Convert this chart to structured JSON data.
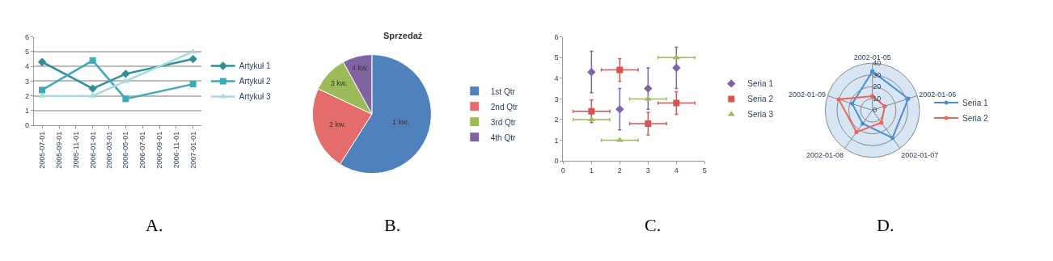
{
  "chart_data": [
    {
      "type": "line",
      "annotations": [
        "A."
      ],
      "x": [
        "2005-07-01",
        "2006-01-01",
        "2006-05-01",
        "2007-01-01"
      ],
      "series": [
        {
          "name": "Artykuł 1",
          "color": "#2e8f96",
          "marker": "diamond",
          "values": [
            4.3,
            2.5,
            3.5,
            4.5
          ]
        },
        {
          "name": "Artykuł 2",
          "color": "#3aabb8",
          "marker": "square",
          "values": [
            2.4,
            4.4,
            1.8,
            2.8
          ]
        },
        {
          "name": "Artykuł 3",
          "color": "#a6dce0",
          "marker": "triangle",
          "values": [
            2.0,
            2.0,
            3.0,
            5.0
          ]
        }
      ],
      "xlim": [
        "2005-06-01",
        "2007-02-01"
      ],
      "xticks": [
        "2005-07-01",
        "2005-09-01",
        "2005-11-01",
        "2006-01-01",
        "2006-03-01",
        "2006-05-01",
        "2006-07-01",
        "2006-09-01",
        "2006-11-01",
        "2007-01-01"
      ],
      "ylim": [
        0,
        6
      ],
      "yticks": [
        0,
        1,
        2,
        3,
        4,
        5,
        6
      ],
      "grid": "y",
      "legend": "right"
    },
    {
      "type": "pie",
      "title": "Sprzedaż",
      "annotations": [
        "B.",
        {
          "text": "1 kw.",
          "x": "1st Qtr"
        },
        {
          "text": "2 kw.",
          "x": "2nd Qtr"
        },
        {
          "text": "3 kw.",
          "x": "3rd Qtr"
        },
        {
          "text": "4 kw.",
          "x": "4th Qtr"
        }
      ],
      "categories": [
        "1st Qtr",
        "2nd Qtr",
        "3rd Qtr",
        "4th Qtr"
      ],
      "values": [
        59,
        23,
        10,
        8
      ],
      "colors": [
        "#4f81bd",
        "#e46c6a",
        "#9bbb59",
        "#8064a2"
      ],
      "legend": "right"
    },
    {
      "type": "scatter",
      "annotations": [
        "C."
      ],
      "x": [
        1,
        2,
        3,
        4
      ],
      "series": [
        {
          "name": "Seria 1",
          "color": "#8064a2",
          "marker": "diamond",
          "values": [
            4.3,
            2.5,
            3.5,
            4.5
          ],
          "errors": [
            1,
            1,
            1,
            1
          ]
        },
        {
          "name": "Seria 2",
          "color": "#d9534f",
          "marker": "square",
          "values": [
            2.4,
            4.4,
            1.8,
            2.8
          ],
          "errors": [
            0.55,
            0.55,
            0.55,
            0.55
          ],
          "xerrors": [
            0.65,
            0.65,
            0.65,
            0.65
          ]
        },
        {
          "name": "Seria 3",
          "color": "#9bbb59",
          "marker": "triangle",
          "values": [
            2.0,
            1.0,
            3.0,
            5.0
          ],
          "xerrors": [
            0.65,
            0.65,
            0.65,
            0.65
          ]
        }
      ],
      "xlim": [
        0,
        5
      ],
      "xticks": [
        0,
        1,
        2,
        3,
        4,
        5
      ],
      "ylim": [
        0,
        6
      ],
      "yticks": [
        0,
        1,
        2,
        3,
        4,
        5,
        6
      ],
      "legend": "right"
    },
    {
      "type": "radar",
      "annotations": [
        "D."
      ],
      "categories": [
        "2002-01-05",
        "2002-01-06",
        "2002-01-07",
        "2002-01-08",
        "2002-01-09"
      ],
      "series": [
        {
          "name": "Seria 1",
          "color": "#4a8fd0",
          "values": [
            33,
            32,
            29,
            14,
            18
          ]
        },
        {
          "name": "Seria 2",
          "color": "#e8665a",
          "values": [
            12,
            11,
            13,
            23,
            30
          ]
        }
      ],
      "ylim": [
        0,
        40
      ],
      "yticks": [
        0,
        10,
        20,
        30,
        40
      ],
      "marker": "circle",
      "legend": "right"
    }
  ]
}
